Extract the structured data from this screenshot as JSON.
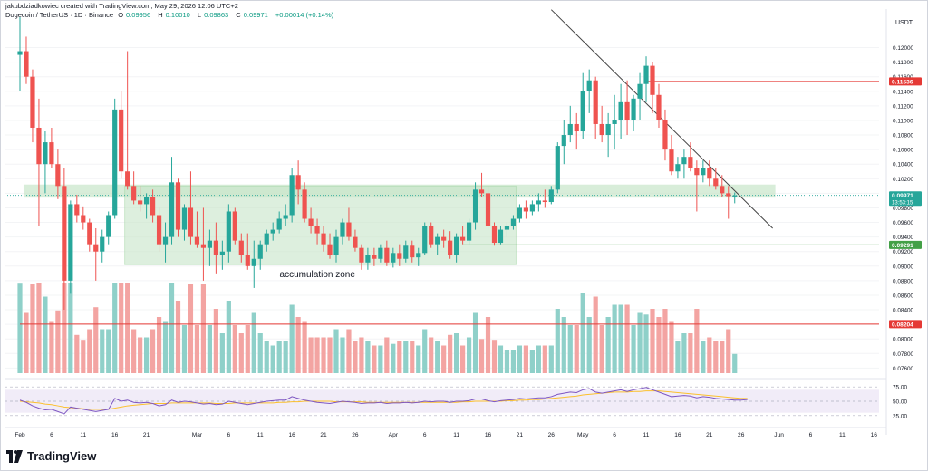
{
  "header": {
    "attribution": "jakubdziadkowiec created with TradingView.com, May 29, 2026 12:06 UTC+2",
    "symbol": "Dogecoin / TetherUS · 1D · Binance",
    "o_label": "O",
    "o_value": "0.09956",
    "h_label": "H",
    "h_value": "0.10010",
    "l_label": "L",
    "l_value": "0.09863",
    "c_label": "C",
    "c_value": "0.09971",
    "change": "+0.00014 (+0.14%)"
  },
  "footer": {
    "brand": "TradingView"
  },
  "colors": {
    "up": "#26a69a",
    "down": "#ef5350",
    "vol_up": "#8fd0c9",
    "vol_down": "#f3a4a2",
    "zone": "#c8e6c9",
    "rsi_line": "#7e57c2",
    "rsi_ma": "#fbc02d",
    "resistance": "#e53935",
    "support": "#43a047",
    "trendline": "#424242"
  },
  "chart_data": {
    "type": "candlestick",
    "currency_label": "USDT",
    "y_ticks": [
      "0.12000",
      "0.11800",
      "0.11600",
      "0.11400",
      "0.11200",
      "0.11000",
      "0.10800",
      "0.10600",
      "0.10400",
      "0.10200",
      "0.10000",
      "0.09800",
      "0.09600",
      "0.09400",
      "0.09200",
      "0.09000",
      "0.08800",
      "0.08600",
      "0.08400",
      "0.08200",
      "0.08000",
      "0.07800",
      "0.07600"
    ],
    "price_ylim": [
      0.0758,
      0.1228
    ],
    "x_ticks": [
      {
        "label": "Feb",
        "date_index": 0
      },
      {
        "label": "6",
        "date_index": 5
      },
      {
        "label": "11",
        "date_index": 10
      },
      {
        "label": "16",
        "date_index": 15
      },
      {
        "label": "21",
        "date_index": 20
      },
      {
        "label": "Mar",
        "date_index": 28
      },
      {
        "label": "6",
        "date_index": 33
      },
      {
        "label": "11",
        "date_index": 38
      },
      {
        "label": "16",
        "date_index": 43
      },
      {
        "label": "21",
        "date_index": 48
      },
      {
        "label": "26",
        "date_index": 53
      },
      {
        "label": "Apr",
        "date_index": 59
      },
      {
        "label": "6",
        "date_index": 64
      },
      {
        "label": "11",
        "date_index": 69
      },
      {
        "label": "16",
        "date_index": 74
      },
      {
        "label": "21",
        "date_index": 79
      },
      {
        "label": "26",
        "date_index": 84
      },
      {
        "label": "May",
        "date_index": 89
      },
      {
        "label": "6",
        "date_index": 94
      },
      {
        "label": "11",
        "date_index": 99
      },
      {
        "label": "16",
        "date_index": 104
      },
      {
        "label": "21",
        "date_index": 109
      },
      {
        "label": "26",
        "date_index": 114
      },
      {
        "label": "Jun",
        "date_index": 120
      },
      {
        "label": "6",
        "date_index": 125
      },
      {
        "label": "11",
        "date_index": 130
      },
      {
        "label": "16",
        "date_index": 135
      }
    ],
    "candles": [
      {
        "o": 0.119,
        "h": 0.1242,
        "l": 0.114,
        "c": 0.1195
      },
      {
        "o": 0.1195,
        "h": 0.1215,
        "l": 0.115,
        "c": 0.116
      },
      {
        "o": 0.116,
        "h": 0.117,
        "l": 0.107,
        "c": 0.109
      },
      {
        "o": 0.109,
        "h": 0.113,
        "l": 0.0955,
        "c": 0.104
      },
      {
        "o": 0.104,
        "h": 0.1085,
        "l": 0.1,
        "c": 0.107
      },
      {
        "o": 0.107,
        "h": 0.109,
        "l": 0.1035,
        "c": 0.104
      },
      {
        "o": 0.104,
        "h": 0.106,
        "l": 0.0992,
        "c": 0.101
      },
      {
        "o": 0.101,
        "h": 0.1035,
        "l": 0.084,
        "c": 0.088
      },
      {
        "o": 0.088,
        "h": 0.099,
        "l": 0.0862,
        "c": 0.0985
      },
      {
        "o": 0.0985,
        "h": 0.0998,
        "l": 0.096,
        "c": 0.097
      },
      {
        "o": 0.097,
        "h": 0.0982,
        "l": 0.095,
        "c": 0.096
      },
      {
        "o": 0.096,
        "h": 0.0965,
        "l": 0.092,
        "c": 0.093
      },
      {
        "o": 0.093,
        "h": 0.0952,
        "l": 0.088,
        "c": 0.092
      },
      {
        "o": 0.092,
        "h": 0.095,
        "l": 0.0905,
        "c": 0.094
      },
      {
        "o": 0.094,
        "h": 0.0975,
        "l": 0.093,
        "c": 0.097
      },
      {
        "o": 0.097,
        "h": 0.113,
        "l": 0.0965,
        "c": 0.1115
      },
      {
        "o": 0.1115,
        "h": 0.114,
        "l": 0.102,
        "c": 0.103
      },
      {
        "o": 0.103,
        "h": 0.1195,
        "l": 0.1005,
        "c": 0.101
      },
      {
        "o": 0.101,
        "h": 0.103,
        "l": 0.0985,
        "c": 0.099
      },
      {
        "o": 0.099,
        "h": 0.101,
        "l": 0.0975,
        "c": 0.0985
      },
      {
        "o": 0.0985,
        "h": 0.1,
        "l": 0.0965,
        "c": 0.0995
      },
      {
        "o": 0.0995,
        "h": 0.1005,
        "l": 0.096,
        "c": 0.097
      },
      {
        "o": 0.097,
        "h": 0.098,
        "l": 0.092,
        "c": 0.093
      },
      {
        "o": 0.093,
        "h": 0.096,
        "l": 0.0905,
        "c": 0.094
      },
      {
        "o": 0.094,
        "h": 0.105,
        "l": 0.093,
        "c": 0.1015
      },
      {
        "o": 0.1015,
        "h": 0.102,
        "l": 0.094,
        "c": 0.095
      },
      {
        "o": 0.095,
        "h": 0.0985,
        "l": 0.0935,
        "c": 0.098
      },
      {
        "o": 0.098,
        "h": 0.103,
        "l": 0.093,
        "c": 0.094
      },
      {
        "o": 0.094,
        "h": 0.0975,
        "l": 0.0925,
        "c": 0.093
      },
      {
        "o": 0.093,
        "h": 0.098,
        "l": 0.088,
        "c": 0.0925
      },
      {
        "o": 0.0925,
        "h": 0.095,
        "l": 0.09,
        "c": 0.0935
      },
      {
        "o": 0.0935,
        "h": 0.096,
        "l": 0.089,
        "c": 0.0915
      },
      {
        "o": 0.0915,
        "h": 0.0935,
        "l": 0.0895,
        "c": 0.092
      },
      {
        "o": 0.092,
        "h": 0.0985,
        "l": 0.0905,
        "c": 0.0975
      },
      {
        "o": 0.0975,
        "h": 0.098,
        "l": 0.093,
        "c": 0.0935
      },
      {
        "o": 0.0935,
        "h": 0.0945,
        "l": 0.0905,
        "c": 0.0915
      },
      {
        "o": 0.0915,
        "h": 0.0945,
        "l": 0.0895,
        "c": 0.09
      },
      {
        "o": 0.09,
        "h": 0.0935,
        "l": 0.087,
        "c": 0.091
      },
      {
        "o": 0.091,
        "h": 0.0935,
        "l": 0.0895,
        "c": 0.093
      },
      {
        "o": 0.093,
        "h": 0.095,
        "l": 0.092,
        "c": 0.0945
      },
      {
        "o": 0.0945,
        "h": 0.096,
        "l": 0.0935,
        "c": 0.095
      },
      {
        "o": 0.095,
        "h": 0.0975,
        "l": 0.0945,
        "c": 0.0965
      },
      {
        "o": 0.0965,
        "h": 0.0985,
        "l": 0.0955,
        "c": 0.097
      },
      {
        "o": 0.097,
        "h": 0.1035,
        "l": 0.096,
        "c": 0.1025
      },
      {
        "o": 0.1025,
        "h": 0.1045,
        "l": 0.0985,
        "c": 0.1005
      },
      {
        "o": 0.1005,
        "h": 0.1015,
        "l": 0.096,
        "c": 0.0965
      },
      {
        "o": 0.0965,
        "h": 0.098,
        "l": 0.0945,
        "c": 0.0955
      },
      {
        "o": 0.0955,
        "h": 0.0965,
        "l": 0.093,
        "c": 0.0945
      },
      {
        "o": 0.0945,
        "h": 0.0955,
        "l": 0.092,
        "c": 0.093
      },
      {
        "o": 0.093,
        "h": 0.0945,
        "l": 0.091,
        "c": 0.0915
      },
      {
        "o": 0.0915,
        "h": 0.095,
        "l": 0.0905,
        "c": 0.094
      },
      {
        "o": 0.094,
        "h": 0.0965,
        "l": 0.093,
        "c": 0.096
      },
      {
        "o": 0.096,
        "h": 0.098,
        "l": 0.0935,
        "c": 0.094
      },
      {
        "o": 0.094,
        "h": 0.095,
        "l": 0.092,
        "c": 0.0925
      },
      {
        "o": 0.0925,
        "h": 0.093,
        "l": 0.0895,
        "c": 0.0905
      },
      {
        "o": 0.0905,
        "h": 0.0925,
        "l": 0.0895,
        "c": 0.0915
      },
      {
        "o": 0.0915,
        "h": 0.0925,
        "l": 0.09,
        "c": 0.091
      },
      {
        "o": 0.091,
        "h": 0.093,
        "l": 0.0905,
        "c": 0.0925
      },
      {
        "o": 0.0925,
        "h": 0.0935,
        "l": 0.09,
        "c": 0.0905
      },
      {
        "o": 0.0905,
        "h": 0.0925,
        "l": 0.0898,
        "c": 0.0918
      },
      {
        "o": 0.0918,
        "h": 0.093,
        "l": 0.09,
        "c": 0.091
      },
      {
        "o": 0.091,
        "h": 0.0935,
        "l": 0.0905,
        "c": 0.0928
      },
      {
        "o": 0.0928,
        "h": 0.0935,
        "l": 0.0905,
        "c": 0.0912
      },
      {
        "o": 0.0912,
        "h": 0.0925,
        "l": 0.09,
        "c": 0.0918
      },
      {
        "o": 0.0918,
        "h": 0.096,
        "l": 0.0915,
        "c": 0.0955
      },
      {
        "o": 0.0955,
        "h": 0.096,
        "l": 0.0925,
        "c": 0.093
      },
      {
        "o": 0.093,
        "h": 0.0945,
        "l": 0.0915,
        "c": 0.094
      },
      {
        "o": 0.094,
        "h": 0.095,
        "l": 0.0925,
        "c": 0.0935
      },
      {
        "o": 0.0935,
        "h": 0.0948,
        "l": 0.091,
        "c": 0.0915
      },
      {
        "o": 0.0915,
        "h": 0.0945,
        "l": 0.0905,
        "c": 0.094
      },
      {
        "o": 0.094,
        "h": 0.0955,
        "l": 0.093,
        "c": 0.0935
      },
      {
        "o": 0.0935,
        "h": 0.0965,
        "l": 0.093,
        "c": 0.096
      },
      {
        "o": 0.096,
        "h": 0.1015,
        "l": 0.095,
        "c": 0.1005
      },
      {
        "o": 0.1005,
        "h": 0.1028,
        "l": 0.0995,
        "c": 0.1
      },
      {
        "o": 0.1,
        "h": 0.101,
        "l": 0.095,
        "c": 0.0955
      },
      {
        "o": 0.0955,
        "h": 0.096,
        "l": 0.0928,
        "c": 0.0932
      },
      {
        "o": 0.0932,
        "h": 0.0955,
        "l": 0.093,
        "c": 0.095
      },
      {
        "o": 0.095,
        "h": 0.096,
        "l": 0.094,
        "c": 0.0955
      },
      {
        "o": 0.0955,
        "h": 0.097,
        "l": 0.095,
        "c": 0.0965
      },
      {
        "o": 0.0965,
        "h": 0.0985,
        "l": 0.096,
        "c": 0.098
      },
      {
        "o": 0.098,
        "h": 0.099,
        "l": 0.0965,
        "c": 0.0975
      },
      {
        "o": 0.0975,
        "h": 0.099,
        "l": 0.097,
        "c": 0.0985
      },
      {
        "o": 0.0985,
        "h": 0.1,
        "l": 0.0975,
        "c": 0.099
      },
      {
        "o": 0.099,
        "h": 0.1005,
        "l": 0.098,
        "c": 0.0988
      },
      {
        "o": 0.0988,
        "h": 0.101,
        "l": 0.0985,
        "c": 0.1005
      },
      {
        "o": 0.1005,
        "h": 0.107,
        "l": 0.1,
        "c": 0.1065
      },
      {
        "o": 0.1065,
        "h": 0.11,
        "l": 0.104,
        "c": 0.108
      },
      {
        "o": 0.108,
        "h": 0.112,
        "l": 0.107,
        "c": 0.1095
      },
      {
        "o": 0.1095,
        "h": 0.111,
        "l": 0.106,
        "c": 0.1085
      },
      {
        "o": 0.1085,
        "h": 0.1165,
        "l": 0.1075,
        "c": 0.114
      },
      {
        "o": 0.114,
        "h": 0.117,
        "l": 0.111,
        "c": 0.1155
      },
      {
        "o": 0.1155,
        "h": 0.116,
        "l": 0.1075,
        "c": 0.1095
      },
      {
        "o": 0.1095,
        "h": 0.112,
        "l": 0.107,
        "c": 0.108
      },
      {
        "o": 0.108,
        "h": 0.111,
        "l": 0.105,
        "c": 0.1095
      },
      {
        "o": 0.1095,
        "h": 0.1135,
        "l": 0.106,
        "c": 0.11
      },
      {
        "o": 0.11,
        "h": 0.115,
        "l": 0.1075,
        "c": 0.1125
      },
      {
        "o": 0.1125,
        "h": 0.1155,
        "l": 0.108,
        "c": 0.11
      },
      {
        "o": 0.11,
        "h": 0.1135,
        "l": 0.1085,
        "c": 0.113
      },
      {
        "o": 0.113,
        "h": 0.1165,
        "l": 0.11,
        "c": 0.115
      },
      {
        "o": 0.115,
        "h": 0.1188,
        "l": 0.1125,
        "c": 0.1175
      },
      {
        "o": 0.1175,
        "h": 0.118,
        "l": 0.111,
        "c": 0.1135
      },
      {
        "o": 0.1135,
        "h": 0.115,
        "l": 0.109,
        "c": 0.11
      },
      {
        "o": 0.11,
        "h": 0.1115,
        "l": 0.1045,
        "c": 0.106
      },
      {
        "o": 0.106,
        "h": 0.108,
        "l": 0.1025,
        "c": 0.103
      },
      {
        "o": 0.103,
        "h": 0.105,
        "l": 0.102,
        "c": 0.104
      },
      {
        "o": 0.104,
        "h": 0.106,
        "l": 0.102,
        "c": 0.105
      },
      {
        "o": 0.105,
        "h": 0.107,
        "l": 0.103,
        "c": 0.1035
      },
      {
        "o": 0.1035,
        "h": 0.1045,
        "l": 0.0975,
        "c": 0.1025
      },
      {
        "o": 0.1025,
        "h": 0.1045,
        "l": 0.1015,
        "c": 0.1035
      },
      {
        "o": 0.1035,
        "h": 0.1045,
        "l": 0.101,
        "c": 0.102
      },
      {
        "o": 0.102,
        "h": 0.1035,
        "l": 0.1005,
        "c": 0.101
      },
      {
        "o": 0.101,
        "h": 0.1025,
        "l": 0.0995,
        "c": 0.1
      },
      {
        "o": 0.1,
        "h": 0.101,
        "l": 0.0965,
        "c": 0.0996
      },
      {
        "o": 0.09956,
        "h": 0.1001,
        "l": 0.09863,
        "c": 0.09971
      }
    ],
    "volume_shown": true,
    "accumulation_zone": {
      "start_index": 17,
      "end_index": 78,
      "low": 0.0902,
      "high": 0.101,
      "label": "accumulation zone"
    },
    "consolidation_band": {
      "start_index": 1,
      "end_index": 119,
      "low": 0.0994,
      "high": 0.1012
    },
    "horizontal_levels": [
      {
        "name": "resistance",
        "value": 0.11536,
        "label": "0.11536",
        "start_index": 99,
        "color": "#e53935"
      },
      {
        "name": "support",
        "value": 0.09291,
        "label": "0.09291",
        "start_index": 70,
        "color": "#43a047"
      },
      {
        "name": "volume-level",
        "value": 0.08204,
        "label": "0.08204",
        "start_index": 0,
        "color": "#e53935"
      }
    ],
    "current_price": {
      "value": 0.09971,
      "label": "0.09971",
      "countdown": "13:53:15"
    },
    "trendline": {
      "start": {
        "index": 84,
        "value": 0.1252
      },
      "end": {
        "index": 119,
        "value": 0.0952
      }
    },
    "rsi": {
      "levels": [
        75.0,
        50.0,
        25.0
      ],
      "level_labels": [
        "75.00",
        "50.00",
        "25.00"
      ],
      "band": [
        30,
        70
      ],
      "values": [
        52,
        48,
        42,
        38,
        35,
        36,
        32,
        28,
        40,
        38,
        36,
        34,
        32,
        34,
        36,
        55,
        50,
        52,
        48,
        47,
        48,
        46,
        42,
        44,
        52,
        48,
        50,
        49,
        47,
        45,
        46,
        44,
        45,
        50,
        48,
        46,
        44,
        46,
        48,
        50,
        51,
        52,
        52,
        58,
        55,
        52,
        50,
        48,
        47,
        46,
        48,
        50,
        49,
        48,
        46,
        47,
        47,
        48,
        46,
        47,
        47,
        48,
        47,
        48,
        50,
        49,
        50,
        50,
        48,
        50,
        50,
        51,
        54,
        54,
        51,
        49,
        51,
        52,
        53,
        55,
        54,
        55,
        56,
        56,
        58,
        62,
        64,
        66,
        65,
        70,
        72,
        66,
        64,
        66,
        68,
        70,
        67,
        70,
        72,
        74,
        70,
        66,
        62,
        58,
        59,
        60,
        59,
        56,
        58,
        57,
        55,
        54,
        53,
        52,
        52,
        53
      ],
      "ma_values": [
        50,
        49,
        48,
        47,
        45,
        44,
        42,
        40,
        39,
        38,
        37,
        36,
        36,
        36,
        36,
        38,
        40,
        42,
        43,
        44,
        45,
        46,
        46,
        46,
        47,
        47,
        47,
        47,
        47,
        47,
        47,
        46,
        46,
        46,
        47,
        47,
        47,
        47,
        47,
        47,
        47,
        48,
        48,
        49,
        49,
        50,
        50,
        50,
        50,
        50,
        49,
        49,
        49,
        49,
        49,
        48,
        48,
        48,
        48,
        48,
        48,
        48,
        48,
        48,
        48,
        48,
        48,
        48,
        48,
        48,
        49,
        49,
        50,
        50,
        50,
        50,
        50,
        51,
        51,
        52,
        52,
        53,
        53,
        54,
        55,
        56,
        57,
        58,
        59,
        61,
        62,
        63,
        64,
        65,
        66,
        66,
        66,
        67,
        67,
        68,
        68,
        68,
        67,
        66,
        65,
        64,
        63,
        62,
        61,
        60,
        59,
        58,
        57,
        56,
        55,
        55
      ]
    }
  }
}
